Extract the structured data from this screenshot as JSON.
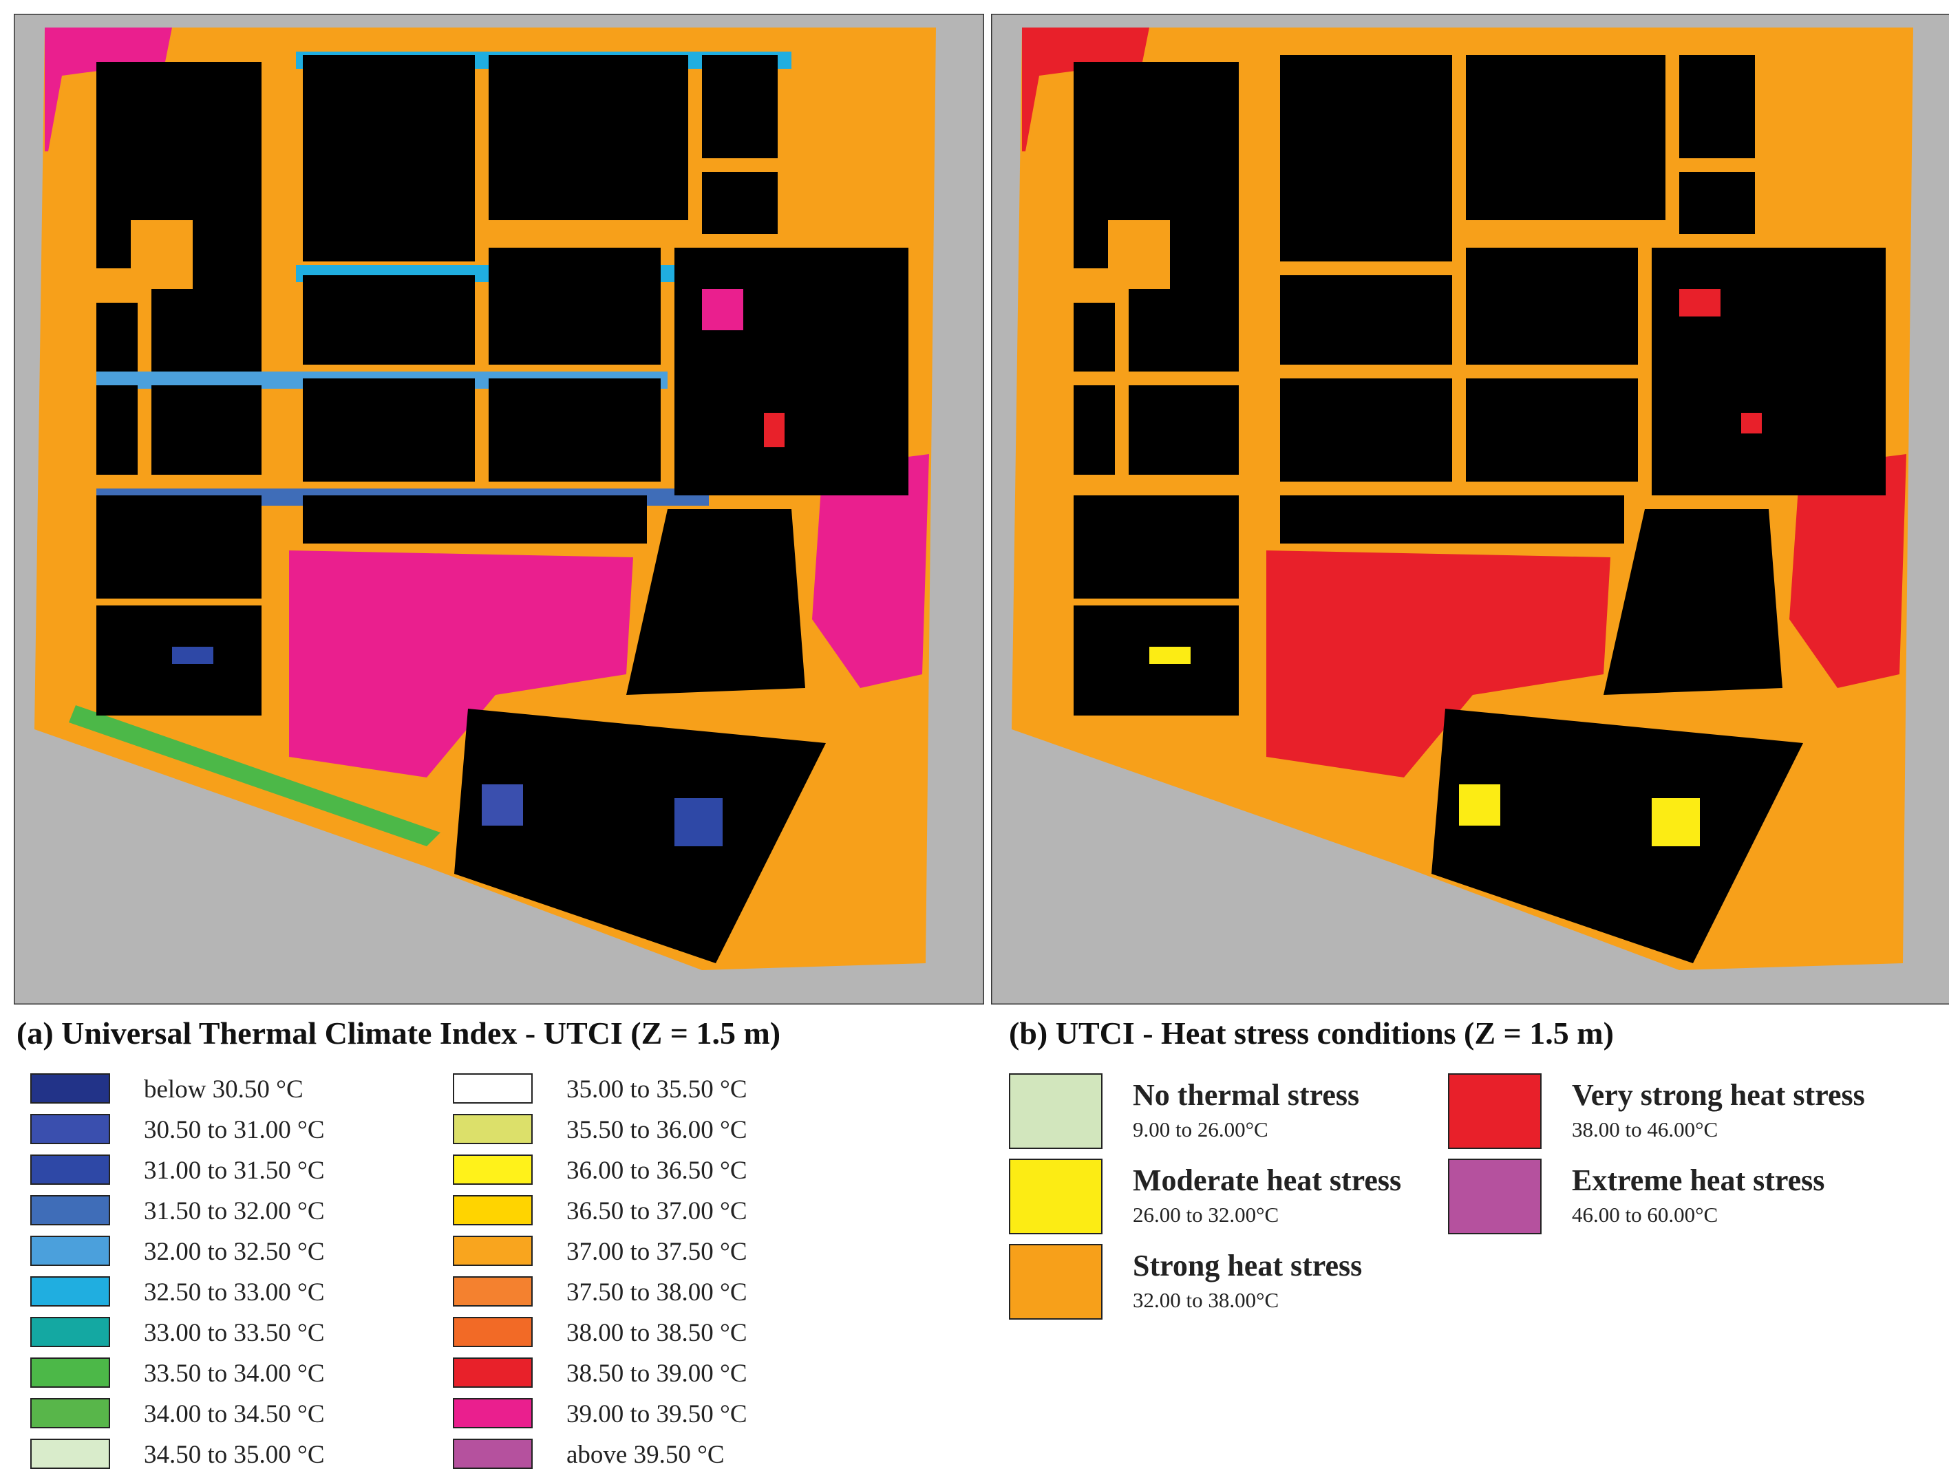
{
  "panels": {
    "a": {
      "caption": "(a)  Universal Thermal Climate Index - UTCI (Z = 1.5 m)"
    },
    "b": {
      "caption": "(b)  UTCI - Heat stress conditions (Z = 1.5 m)"
    }
  },
  "legend_a": {
    "column_1": [
      {
        "label": "below 30.50 °C",
        "color": "#223388"
      },
      {
        "label": "30.50 to 31.00 °C",
        "color": "#3a4fae"
      },
      {
        "label": "31.00 to 31.50 °C",
        "color": "#2e48a6"
      },
      {
        "label": "31.50 to 32.00 °C",
        "color": "#3f6db8"
      },
      {
        "label": "32.00 to 32.50 °C",
        "color": "#4ba0dc"
      },
      {
        "label": "32.50 to 33.00 °C",
        "color": "#20aee0"
      },
      {
        "label": "33.00 to 33.50 °C",
        "color": "#14a8a2"
      },
      {
        "label": "33.50 to 34.00 °C",
        "color": "#4cb848"
      },
      {
        "label": "34.00 to 34.50 °C",
        "color": "#58b64a"
      },
      {
        "label": "34.50 to 35.00 °C",
        "color": "#d9eccb"
      }
    ],
    "column_2": [
      {
        "label": "35.00 to 35.50 °C",
        "color": "#ffffff"
      },
      {
        "label": "35.50 to 36.00 °C",
        "color": "#dce06a"
      },
      {
        "label": "36.00 to 36.50 °C",
        "color": "#fff21a"
      },
      {
        "label": "36.50 to 37.00 °C",
        "color": "#ffd400"
      },
      {
        "label": "37.00 to 37.50 °C",
        "color": "#f9a51e"
      },
      {
        "label": "37.50 to 38.00 °C",
        "color": "#f4812f"
      },
      {
        "label": "38.00 to 38.50 °C",
        "color": "#f26a26"
      },
      {
        "label": "38.50 to 39.00 °C",
        "color": "#e8212a"
      },
      {
        "label": "39.00 to 39.50 °C",
        "color": "#ea1f8e"
      },
      {
        "label": "above 39.50 °C",
        "color": "#b5519e"
      }
    ]
  },
  "legend_b": [
    {
      "name": "No thermal stress",
      "range": "9.00 to 26.00°C",
      "color": "#d2e6bd"
    },
    {
      "name": "Moderate heat stress",
      "range": "26.00 to 32.00°C",
      "color": "#fcec14"
    },
    {
      "name": "Strong heat stress",
      "range": "32.00 to 38.00°C",
      "color": "#f7a01a"
    },
    {
      "name": "Very strong heat stress",
      "range": "38.00 to 46.00°C",
      "color": "#e8202a"
    },
    {
      "name": "Extreme heat stress",
      "range": "46.00 to 60.00°C",
      "color": "#b5519e"
    }
  ],
  "map_colors": {
    "background": "#b5b5b5",
    "building": "#000000"
  }
}
